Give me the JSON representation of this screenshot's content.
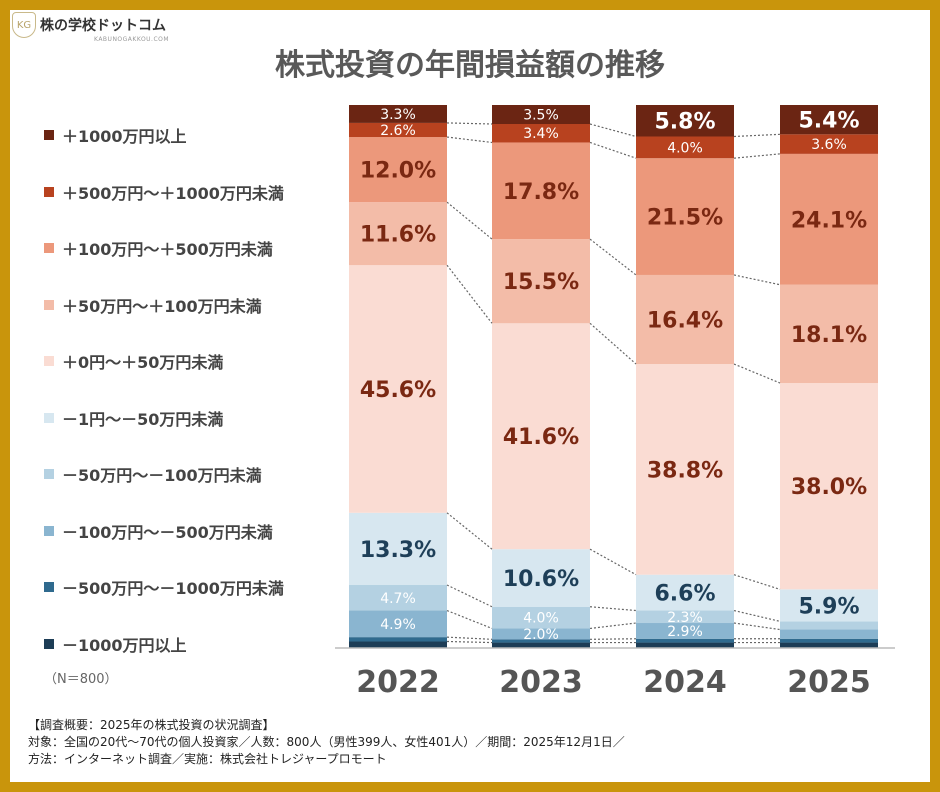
{
  "logo": {
    "name": "株の学校ドットコム",
    "sub": "KABUNOGAKKOU.COM",
    "mark": "KG"
  },
  "chart_data": {
    "type": "bar",
    "stacked": true,
    "title": "株式投資の年間損益額の推移",
    "categories": [
      "2022",
      "2023",
      "2024",
      "2025"
    ],
    "series": [
      {
        "name": "－1000万円以上",
        "color": "#1d3d56",
        "values": [
          1.2,
          1.0,
          1.0,
          1.0
        ]
      },
      {
        "name": "－500万円～－1000万円未満",
        "color": "#2f6a8e",
        "values": [
          0.8,
          0.6,
          0.7,
          0.7
        ]
      },
      {
        "name": "－100万円～－500万円未満",
        "color": "#8ab5d0",
        "values": [
          4.9,
          2.0,
          2.9,
          1.7
        ]
      },
      {
        "name": "－50万円～－100万円未満",
        "color": "#b4d1e2",
        "values": [
          4.7,
          4.0,
          2.3,
          1.5
        ]
      },
      {
        "name": "－1円～－50万円未満",
        "color": "#d7e7f0",
        "values": [
          13.3,
          10.6,
          6.6,
          5.9
        ]
      },
      {
        "name": "＋0円～＋50万円未満",
        "color": "#fadcd3",
        "values": [
          45.6,
          41.6,
          38.8,
          38.0
        ]
      },
      {
        "name": "＋50万円～＋100万円未満",
        "color": "#f3bca8",
        "values": [
          11.6,
          15.5,
          16.4,
          18.1
        ]
      },
      {
        "name": "＋100万円～＋500万円未満",
        "color": "#ec987b",
        "values": [
          12.0,
          17.8,
          21.5,
          24.1
        ]
      },
      {
        "name": "＋500万円～＋1000万円未満",
        "color": "#b8421f",
        "values": [
          2.6,
          3.4,
          4.0,
          3.6
        ]
      },
      {
        "name": "＋1000万円以上",
        "color": "#6b2513",
        "values": [
          3.3,
          3.5,
          5.8,
          5.4
        ]
      }
    ],
    "data_labels": [
      [
        "",
        "",
        "4.9%",
        "4.7%",
        "13.3%",
        "45.6%",
        "11.6%",
        "12.0%",
        "2.6%",
        "3.3%"
      ],
      [
        "",
        "",
        "2.0%",
        "4.0%",
        "10.6%",
        "41.6%",
        "15.5%",
        "17.8%",
        "3.4%",
        "3.5%"
      ],
      [
        "",
        "",
        "2.9%",
        "2.3%",
        "6.6%",
        "38.8%",
        "16.4%",
        "21.5%",
        "4.0%",
        "5.8%"
      ],
      [
        "",
        "",
        "",
        "",
        "5.9%",
        "38.0%",
        "18.1%",
        "24.1%",
        "3.6%",
        "5.4%"
      ]
    ],
    "ylim": [
      0,
      100
    ],
    "legend": "left",
    "note": "（N＝800）"
  },
  "footer": {
    "line1": "【調査概要：2025年の株式投資の状況調査】",
    "line2": "対象：全国の20代～70代の個人投資家／人数：800人（男性399人、女性401人）／期間：2025年12月1日／",
    "line3": "方法：インターネット調査／実施：株式会社トレジャープロモート"
  }
}
